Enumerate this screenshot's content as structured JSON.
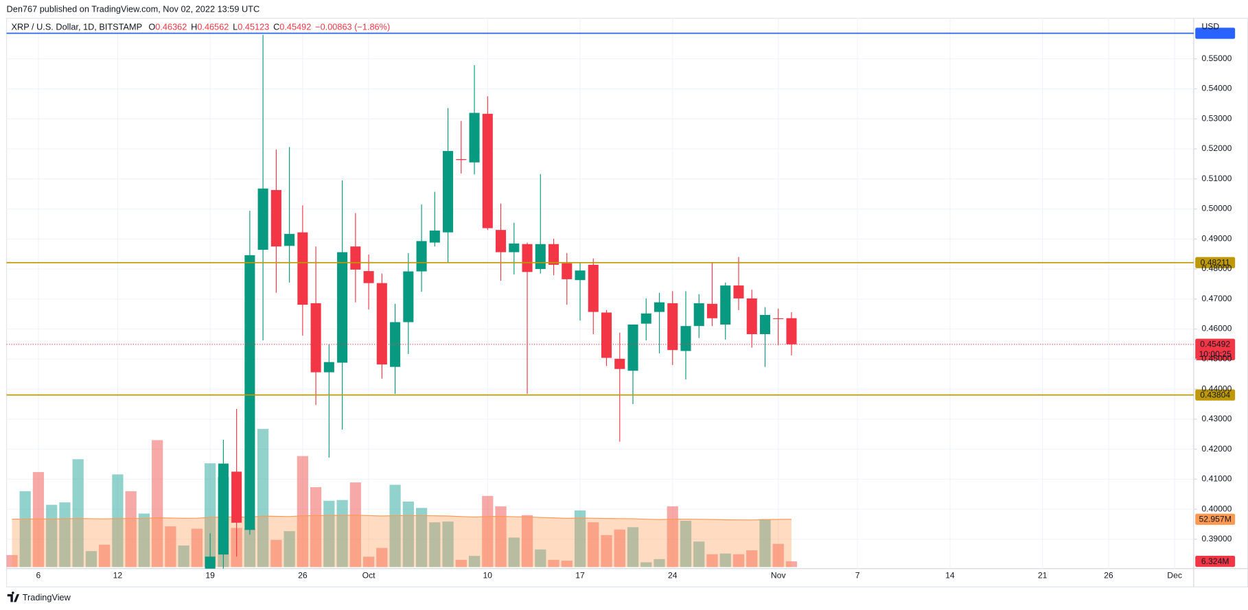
{
  "header": {
    "publisher": "Den767 published on TradingView.com, Nov 02, 2022 13:59 UTC"
  },
  "footer": {
    "brand": "TradingView"
  },
  "chart_data": {
    "type": "candlestick",
    "title": "XRP / U.S. Dollar, 1D, BITSTAMP",
    "ohlc": [
      {
        "label": "O",
        "value": 0.46362
      },
      {
        "label": "H",
        "value": 0.46562
      },
      {
        "label": "L",
        "value": 0.45123
      },
      {
        "label": "C",
        "value": 0.45492
      }
    ],
    "change": "−0.00863 (−1.86%)",
    "y_axis_unit": "USD",
    "countdown": "10:00:25",
    "categories": [
      null,
      null,
      "6",
      null,
      null,
      null,
      null,
      null,
      "12",
      null,
      null,
      null,
      null,
      null,
      null,
      "19",
      null,
      null,
      null,
      null,
      null,
      null,
      "26",
      null,
      null,
      null,
      null,
      "Oct",
      null,
      null,
      null,
      null,
      null,
      null,
      null,
      null,
      "10",
      null,
      null,
      null,
      null,
      null,
      null,
      "17",
      null,
      null,
      null,
      null,
      null,
      null,
      "24",
      null,
      null,
      null,
      null,
      null,
      null,
      null,
      "Nov",
      null,
      null,
      null,
      null,
      null,
      "7",
      null,
      null,
      null,
      null,
      null,
      null,
      "14",
      null,
      null,
      null,
      null,
      null,
      null,
      "21",
      null,
      null,
      null,
      null,
      "26",
      null,
      null,
      null,
      null,
      "Dec"
    ],
    "open": [
      null,
      null,
      null,
      null,
      null,
      null,
      null,
      null,
      null,
      null,
      null,
      null,
      null,
      null,
      null,
      0.375,
      0.3849,
      0.4125,
      0.3931,
      0.4864,
      0.5063,
      0.4877,
      0.4922,
      0.4686,
      0.4456,
      0.4488,
      0.4875,
      0.4793,
      0.4753,
      0.4474,
      0.4623,
      0.4792,
      0.4888,
      0.4922,
      0.5166,
      0.5155,
      0.5317,
      0.493,
      0.4856,
      0.4883,
      0.48,
      0.4883,
      0.4819,
      0.4763,
      0.4814,
      0.4655,
      0.4501,
      0.4461,
      0.4618,
      0.4657,
      0.4686,
      0.4527,
      0.461,
      0.4684,
      0.4615,
      0.4745,
      0.4702,
      0.4583,
      0.4636,
      0.46362,
      null,
      null,
      null,
      null,
      null,
      null,
      null,
      null,
      null,
      null,
      null,
      null,
      null,
      null,
      null,
      null,
      null,
      null,
      null,
      null,
      null,
      null,
      null,
      null,
      null,
      null,
      null,
      null,
      null
    ],
    "high": [
      null,
      null,
      null,
      null,
      null,
      null,
      null,
      null,
      null,
      null,
      null,
      null,
      null,
      null,
      null,
      0.392,
      0.4231,
      0.4334,
      0.4994,
      0.558,
      0.5198,
      0.5206,
      0.5012,
      0.4875,
      0.4549,
      0.5095,
      0.4986,
      0.4848,
      0.4785,
      0.4684,
      0.4853,
      0.5015,
      0.5057,
      0.5336,
      0.5293,
      0.5479,
      0.5375,
      0.5018,
      0.4954,
      0.4888,
      0.5116,
      0.4901,
      0.4853,
      0.4822,
      0.4835,
      0.4663,
      0.4588,
      0.4615,
      0.4702,
      0.4721,
      0.4726,
      0.4726,
      0.4716,
      0.4822,
      0.4755,
      0.484,
      0.4731,
      0.4673,
      0.4668,
      0.46562,
      null,
      null,
      null,
      null,
      null,
      null,
      null,
      null,
      null,
      null,
      null,
      null,
      null,
      null,
      null,
      null,
      null,
      null,
      null,
      null,
      null,
      null,
      null,
      null,
      null,
      null,
      null,
      null,
      null
    ],
    "low": [
      null,
      null,
      null,
      null,
      null,
      null,
      null,
      null,
      null,
      null,
      null,
      null,
      null,
      null,
      null,
      0.37,
      0.378,
      0.3842,
      0.3915,
      0.4562,
      0.4721,
      0.4755,
      0.4578,
      0.4347,
      0.4172,
      0.4265,
      0.4689,
      0.4665,
      0.4435,
      0.4384,
      0.4517,
      0.4724,
      0.4875,
      0.4822,
      0.5118,
      0.5115,
      0.493,
      0.4761,
      0.4782,
      0.4384,
      0.4785,
      0.4779,
      0.4681,
      0.4628,
      0.4583,
      0.4477,
      0.4225,
      0.435,
      0.4562,
      0.4519,
      0.448,
      0.4432,
      0.457,
      0.461,
      0.4565,
      0.4663,
      0.4538,
      0.4474,
      0.4546,
      0.45123,
      null,
      null,
      null,
      null,
      null,
      null,
      null,
      null,
      null,
      null,
      null,
      null,
      null,
      null,
      null,
      null,
      null,
      null,
      null,
      null,
      null,
      null,
      null,
      null,
      null,
      null,
      null,
      null,
      null
    ],
    "close": [
      null,
      null,
      null,
      null,
      null,
      null,
      null,
      null,
      null,
      null,
      null,
      null,
      null,
      null,
      null,
      0.3842,
      0.4152,
      0.3955,
      0.4846,
      0.5068,
      0.4875,
      0.4917,
      0.4681,
      0.4456,
      0.449,
      0.4856,
      0.4798,
      0.4753,
      0.4482,
      0.4623,
      0.4792,
      0.4893,
      0.4928,
      0.5193,
      0.5163,
      0.532,
      0.4936,
      0.4856,
      0.4885,
      0.479,
      0.4883,
      0.4814,
      0.4766,
      0.4795,
      0.4657,
      0.4504,
      0.4467,
      0.4615,
      0.4652,
      0.4689,
      0.453,
      0.461,
      0.4686,
      0.4636,
      0.4745,
      0.4702,
      0.4583,
      0.4647,
      0.4634,
      0.45492,
      null,
      null,
      null,
      null,
      null,
      null,
      null,
      null,
      null,
      null,
      null,
      null,
      null,
      null,
      null,
      null,
      null,
      null,
      null,
      null,
      null,
      null,
      null,
      null,
      null,
      null,
      null,
      null,
      null
    ],
    "up_color": "#089981",
    "down_color": "#f23645",
    "ylim": [
      0.3802,
      0.5635
    ],
    "yticks": [
      {
        "value": 0.39,
        "label": "0.39000"
      },
      {
        "value": 0.4,
        "label": "0.40000"
      },
      {
        "value": 0.41,
        "label": "0.41000"
      },
      {
        "value": 0.42,
        "label": "0.42000"
      },
      {
        "value": 0.43,
        "label": "0.43000"
      },
      {
        "value": 0.44,
        "label": "0.44000"
      },
      {
        "value": 0.45,
        "label": "0.45000"
      },
      {
        "value": 0.46,
        "label": "0.46000"
      },
      {
        "value": 0.47,
        "label": "0.47000"
      },
      {
        "value": 0.48,
        "label": "0.48000"
      },
      {
        "value": 0.49,
        "label": "0.49000"
      },
      {
        "value": 0.5,
        "label": "0.50000"
      },
      {
        "value": 0.51,
        "label": "0.51000"
      },
      {
        "value": 0.52,
        "label": "0.52000"
      },
      {
        "value": 0.53,
        "label": "0.53000"
      },
      {
        "value": 0.54,
        "label": "0.54000"
      },
      {
        "value": 0.55,
        "label": "0.55000"
      }
    ],
    "grid": true,
    "price_lines": [
      {
        "value": 0.48211,
        "color": "#bf9903"
      },
      {
        "value": 0.43804,
        "color": "#bf9903"
      },
      {
        "value": 0.5585,
        "color": "#2962ff"
      }
    ],
    "volume": {
      "values": [
        13300000,
        84100000,
        105300000,
        69000000,
        71700000,
        119500000,
        17700000,
        24800000,
        102700000,
        84100000,
        59300000,
        140700000,
        45100000,
        23900000,
        42500000,
        115000000,
        100000000,
        43400000,
        42500000,
        153100000,
        30100000,
        39800000,
        123000000,
        88500000,
        73500000,
        74300000,
        93800000,
        11500000,
        21200000,
        91200000,
        72600000,
        65500000,
        49600000,
        50400000,
        8000000,
        12400000,
        78800000,
        67300000,
        32700000,
        57500000,
        19500000,
        8000000,
        7100000,
        62800000,
        49600000,
        35400000,
        41600000,
        44200000,
        5300000,
        8800000,
        67300000,
        51300000,
        28300000,
        14200000,
        15000000,
        14200000,
        18600000,
        53100000,
        25700000,
        6324000,
        null,
        null,
        null,
        null,
        null,
        null,
        null,
        null,
        null,
        null,
        null,
        null,
        null,
        null,
        null,
        null,
        null,
        null,
        null,
        null,
        null,
        null,
        null,
        null,
        null,
        null,
        null,
        null,
        null
      ],
      "colors": [
        "#ef535080",
        "#26a69a80",
        "#ef535080",
        "#26a69a80",
        "#26a69a80",
        "#26a69a80",
        "#26a69a80",
        "#ef535080",
        "#26a69a80",
        "#ef535080",
        "#26a69a80",
        "#ef535080",
        "#ef535080",
        "#26a69a80",
        "#ef535080",
        "#26a69a80",
        "#26a69a80",
        "#ef535080",
        "#26a69a80",
        "#26a69a80",
        "#ef535080",
        "#26a69a80",
        "#ef535080",
        "#ef535080",
        "#26a69a80",
        "#26a69a80",
        "#ef535080",
        "#ef535080",
        "#ef535080",
        "#26a69a80",
        "#26a69a80",
        "#26a69a80",
        "#26a69a80",
        "#26a69a80",
        "#ef535080",
        "#26a69a80",
        "#ef535080",
        "#ef535080",
        "#26a69a80",
        "#ef535080",
        "#26a69a80",
        "#ef535080",
        "#ef535080",
        "#26a69a80",
        "#ef535080",
        "#ef535080",
        "#ef535080",
        "#26a69a80",
        "#26a69a80",
        "#26a69a80",
        "#ef535080",
        "#26a69a80",
        "#26a69a80",
        "#ef535080",
        "#26a69a80",
        "#ef535080",
        "#ef535080",
        "#26a69a80",
        "#ef535080",
        "#ef535080",
        null,
        null,
        null,
        null,
        null,
        null,
        null,
        null,
        null,
        null,
        null,
        null,
        null,
        null,
        null,
        null,
        null,
        null,
        null,
        null,
        null,
        null,
        null,
        null,
        null,
        null,
        null,
        null,
        null
      ],
      "ma": [
        53000000,
        53200000,
        53400000,
        53300000,
        53500000,
        53800000,
        53600000,
        53400000,
        53700000,
        53900000,
        54000000,
        54600000,
        54300000,
        54100000,
        54200000,
        55000000,
        55600000,
        55400000,
        55300000,
        56500000,
        56200000,
        56000000,
        56800000,
        57000000,
        57200000,
        57300000,
        57500000,
        57000000,
        56600000,
        56900000,
        57100000,
        57000000,
        56800000,
        56600000,
        56000000,
        55500000,
        56000000,
        56200000,
        55800000,
        55600000,
        55000000,
        54500000,
        54000000,
        54300000,
        54100000,
        53900000,
        53700000,
        53600000,
        53000000,
        52600000,
        53000000,
        53100000,
        52900000,
        52700000,
        52400000,
        52300000,
        52200000,
        52500000,
        52800000,
        52957000,
        null,
        null,
        null,
        null,
        null,
        null,
        null,
        null,
        null,
        null,
        null,
        null,
        null,
        null,
        null,
        null,
        null,
        null,
        null,
        null,
        null,
        null,
        null,
        null,
        null,
        null,
        null,
        null,
        null
      ],
      "ma_color": "#ff9850",
      "ma_label": "52.957M",
      "last_label": "6.324M"
    },
    "volume_ylim": [
      0,
      610000000
    ]
  }
}
